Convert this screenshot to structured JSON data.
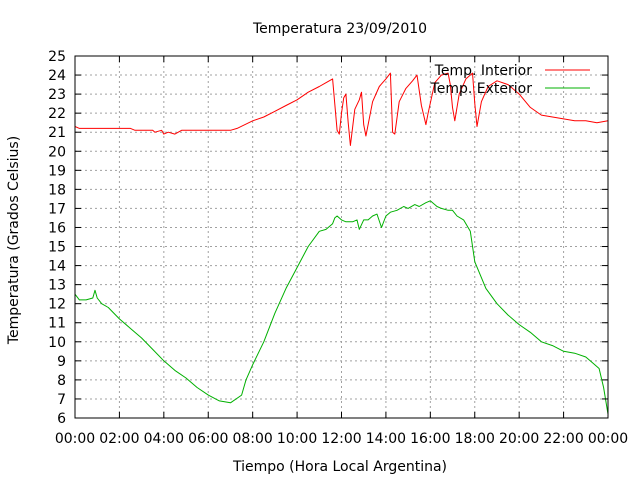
{
  "chart_data": {
    "type": "line",
    "title": "Temperatura 23/09/2010",
    "xlabel": "Tiempo (Hora Local Argentina)",
    "ylabel": "Temperatura (Grados Celsius)",
    "xlim": [
      0,
      24
    ],
    "ylim": [
      6,
      25
    ],
    "x_ticks": [
      "00:00",
      "02:00",
      "04:00",
      "06:00",
      "08:00",
      "10:00",
      "12:00",
      "14:00",
      "16:00",
      "18:00",
      "20:00",
      "22:00",
      "00:00"
    ],
    "y_ticks": [
      6,
      7,
      8,
      9,
      10,
      11,
      12,
      13,
      14,
      15,
      16,
      17,
      18,
      19,
      20,
      21,
      22,
      23,
      24,
      25
    ],
    "grid": true,
    "legend_position": "top-right",
    "series": [
      {
        "name": "Temp. Interior",
        "color": "#ff0000",
        "x": [
          0,
          0.2,
          0.5,
          1,
          1.5,
          2,
          2.5,
          2.7,
          3,
          3.5,
          3.6,
          3.9,
          4.0,
          4.2,
          4.5,
          4.8,
          5,
          6,
          7,
          7.3,
          8,
          8.5,
          9,
          9.5,
          10,
          10.5,
          11,
          11.3,
          11.6,
          11.8,
          11.9,
          12.0,
          12.1,
          12.2,
          12.3,
          12.4,
          12.6,
          12.8,
          12.9,
          13.0,
          13.1,
          13.4,
          13.7,
          14.0,
          14.2,
          14.3,
          14.4,
          14.6,
          14.9,
          15.2,
          15.4,
          15.6,
          15.8,
          15.9,
          16.2,
          16.5,
          16.8,
          16.9,
          17.0,
          17.1,
          17.3,
          17.6,
          17.9,
          18.0,
          18.1,
          18.3,
          18.6,
          19,
          19.5,
          20,
          20.5,
          21,
          21.5,
          22,
          22.5,
          23,
          23.5,
          24
        ],
        "y": [
          21.3,
          21.2,
          21.2,
          21.2,
          21.2,
          21.2,
          21.2,
          21.1,
          21.1,
          21.1,
          21.0,
          21.1,
          20.9,
          21.0,
          20.9,
          21.1,
          21.1,
          21.1,
          21.1,
          21.2,
          21.6,
          21.8,
          22.1,
          22.4,
          22.7,
          23.1,
          23.4,
          23.6,
          23.8,
          21.1,
          20.9,
          22.0,
          22.8,
          23.0,
          21.5,
          20.3,
          22.2,
          22.7,
          23.1,
          21.4,
          20.8,
          22.6,
          23.4,
          23.8,
          24.1,
          21.0,
          20.9,
          22.6,
          23.3,
          23.7,
          24.0,
          22.4,
          21.4,
          22.0,
          23.6,
          24.0,
          24.1,
          23.5,
          22.3,
          21.6,
          23.0,
          23.8,
          24.1,
          22.5,
          21.3,
          22.6,
          23.4,
          23.7,
          23.5,
          23.0,
          22.3,
          21.9,
          21.8,
          21.7,
          21.6,
          21.6,
          21.5,
          21.6
        ]
      },
      {
        "name": "Temp. Exterior",
        "color": "#00b000",
        "x": [
          0,
          0.2,
          0.5,
          0.8,
          0.9,
          1.0,
          1.2,
          1.5,
          2,
          2.5,
          3,
          3.5,
          4,
          4.5,
          5,
          5.5,
          6,
          6.5,
          7,
          7.5,
          7.7,
          8,
          8.5,
          9,
          9.5,
          10,
          10.5,
          11,
          11.3,
          11.6,
          11.7,
          11.8,
          12.0,
          12.2,
          12.5,
          12.7,
          12.8,
          13.0,
          13.2,
          13.4,
          13.6,
          13.8,
          14.0,
          14.2,
          14.5,
          14.8,
          15.0,
          15.3,
          15.5,
          15.8,
          16.0,
          16.3,
          16.5,
          16.8,
          17.0,
          17.2,
          17.5,
          17.8,
          18,
          18.5,
          19,
          19.5,
          20,
          20.5,
          21,
          21.5,
          22,
          22.5,
          23,
          23.3,
          23.6,
          23.8,
          24
        ],
        "y": [
          12.5,
          12.2,
          12.2,
          12.3,
          12.7,
          12.3,
          12.0,
          11.8,
          11.2,
          10.7,
          10.2,
          9.6,
          9.0,
          8.5,
          8.1,
          7.6,
          7.2,
          6.9,
          6.8,
          7.2,
          8.0,
          8.8,
          10.0,
          11.5,
          12.8,
          13.9,
          15.0,
          15.8,
          15.9,
          16.2,
          16.5,
          16.6,
          16.4,
          16.3,
          16.3,
          16.4,
          15.9,
          16.4,
          16.4,
          16.6,
          16.7,
          16.0,
          16.6,
          16.8,
          16.9,
          17.1,
          17.0,
          17.2,
          17.1,
          17.3,
          17.4,
          17.1,
          17.0,
          16.9,
          16.9,
          16.6,
          16.4,
          15.8,
          14.2,
          12.8,
          12.0,
          11.4,
          10.9,
          10.5,
          10.0,
          9.8,
          9.5,
          9.4,
          9.2,
          8.9,
          8.6,
          7.6,
          6.2
        ]
      }
    ]
  }
}
